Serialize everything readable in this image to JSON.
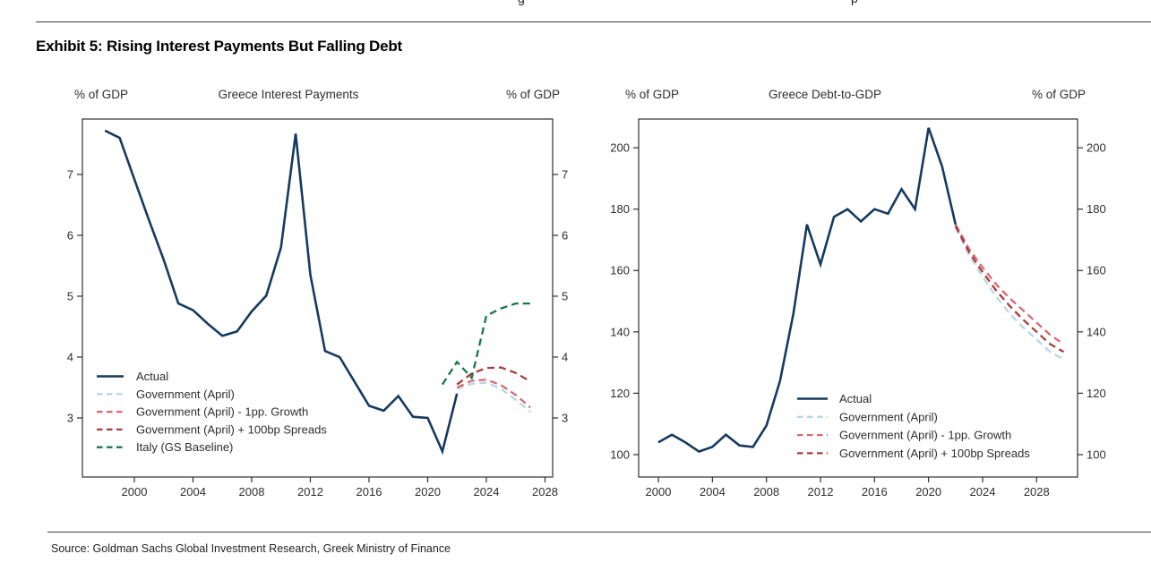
{
  "page": {
    "top_cropped_fragments": [
      "g",
      "p"
    ],
    "exhibit_title": "Exhibit 5: Rising Interest Payments But Falling Debt",
    "source": "Source: Goldman Sachs Global Investment Research, Greek Ministry of Finance"
  },
  "colors": {
    "axis": "#2f2f2f",
    "text": "#2e2e2e",
    "rule": "#3c3c3c",
    "actual": "#163a5f",
    "government_april": "#b9d5e7",
    "minus_1pp_growth": "#d9696f",
    "plus_100bp_spreads": "#a83b3e",
    "italy_baseline": "#17784a"
  },
  "chart_data": [
    {
      "type": "line",
      "title": "Greece Interest Payments",
      "left_axis_label": "% of GDP",
      "right_axis_label": "% of GDP",
      "xlim": [
        1996.46,
        2028.52
      ],
      "ylim": [
        2.03,
        7.91
      ],
      "x_ticks": [
        2000,
        2004,
        2008,
        2012,
        2016,
        2020,
        2024,
        2028
      ],
      "y_ticks": [
        3,
        4,
        5,
        6,
        7
      ],
      "grid": false,
      "legend_position": "bottom-left-inside",
      "series": [
        {
          "name": "Actual",
          "style": "solid",
          "color": "#163a5f",
          "points": [
            [
              1998,
              7.72
            ],
            [
              1999,
              7.6
            ],
            [
              2000,
              6.92
            ],
            [
              2001,
              6.25
            ],
            [
              2002,
              5.6
            ],
            [
              2003,
              4.88
            ],
            [
              2004,
              4.77
            ],
            [
              2005,
              4.55
            ],
            [
              2006,
              4.35
            ],
            [
              2007,
              4.42
            ],
            [
              2008,
              4.75
            ],
            [
              2009,
              5.01
            ],
            [
              2010,
              5.8
            ],
            [
              2011,
              7.67
            ],
            [
              2012,
              5.35
            ],
            [
              2013,
              4.1
            ],
            [
              2014,
              4.0
            ],
            [
              2015,
              3.6
            ],
            [
              2016,
              3.2
            ],
            [
              2017,
              3.12
            ],
            [
              2018,
              3.36
            ],
            [
              2019,
              3.02
            ],
            [
              2020,
              3.0
            ],
            [
              2021,
              2.45
            ],
            [
              2022,
              3.4
            ]
          ]
        },
        {
          "name": "Government (April)",
          "style": "dashed",
          "color": "#b9d5e7",
          "points": [
            [
              2022,
              3.48
            ],
            [
              2023,
              3.56
            ],
            [
              2024,
              3.58
            ],
            [
              2025,
              3.48
            ],
            [
              2026,
              3.3
            ],
            [
              2027,
              3.1
            ]
          ]
        },
        {
          "name": "Government (April) - 1pp. Growth",
          "style": "dashed",
          "color": "#d9696f",
          "points": [
            [
              2022,
              3.5
            ],
            [
              2023,
              3.61
            ],
            [
              2024,
              3.63
            ],
            [
              2025,
              3.54
            ],
            [
              2026,
              3.38
            ],
            [
              2027,
              3.17
            ]
          ]
        },
        {
          "name": "Government (April) + 100bp Spreads",
          "style": "dashed",
          "color": "#a83b3e",
          "points": [
            [
              2022,
              3.55
            ],
            [
              2023,
              3.73
            ],
            [
              2024,
              3.82
            ],
            [
              2025,
              3.83
            ],
            [
              2026,
              3.74
            ],
            [
              2027,
              3.6
            ]
          ]
        },
        {
          "name": "Italy (GS Baseline)",
          "style": "dashed",
          "color": "#17784a",
          "points": [
            [
              2021,
              3.55
            ],
            [
              2022,
              3.92
            ],
            [
              2023,
              3.66
            ],
            [
              2024,
              4.68
            ],
            [
              2025,
              4.8
            ],
            [
              2026,
              4.88
            ],
            [
              2027,
              4.88
            ]
          ]
        }
      ]
    },
    {
      "type": "line",
      "title": "Greece Debt-to-GDP",
      "left_axis_label": "% of GDP",
      "right_axis_label": "% of GDP",
      "xlim": [
        1998.54,
        2031.03
      ],
      "ylim": [
        92.7,
        209.36
      ],
      "x_ticks": [
        2000,
        2004,
        2008,
        2012,
        2016,
        2020,
        2024,
        2028
      ],
      "y_ticks": [
        100,
        120,
        140,
        160,
        180,
        200
      ],
      "grid": false,
      "legend_position": "bottom-right-inside",
      "series": [
        {
          "name": "Actual",
          "style": "solid",
          "color": "#163a5f",
          "points": [
            [
              2000,
              104
            ],
            [
              2001,
              106.5
            ],
            [
              2002,
              104
            ],
            [
              2003,
              101
            ],
            [
              2004,
              102.5
            ],
            [
              2005,
              106.5
            ],
            [
              2006,
              103
            ],
            [
              2007,
              102.5
            ],
            [
              2008,
              109.5
            ],
            [
              2009,
              124
            ],
            [
              2010,
              146
            ],
            [
              2011,
              175
            ],
            [
              2012,
              162
            ],
            [
              2013,
              177.5
            ],
            [
              2014,
              180
            ],
            [
              2015,
              176
            ],
            [
              2016,
              180
            ],
            [
              2017,
              178.5
            ],
            [
              2018,
              186.5
            ],
            [
              2019,
              180
            ],
            [
              2020,
              206.5
            ],
            [
              2021,
              194
            ],
            [
              2022,
              175
            ]
          ]
        },
        {
          "name": "Government (April)",
          "style": "dashed",
          "color": "#b9d5e7",
          "points": [
            [
              2022,
              174
            ],
            [
              2023,
              165
            ],
            [
              2024,
              158
            ],
            [
              2025,
              151.5
            ],
            [
              2026,
              146
            ],
            [
              2027,
              141.5
            ],
            [
              2028,
              137.5
            ],
            [
              2029,
              133.5
            ],
            [
              2030,
              131
            ]
          ]
        },
        {
          "name": "Government (April) - 1pp. Growth",
          "style": "dashed",
          "color": "#d9696f",
          "points": [
            [
              2022,
              175
            ],
            [
              2023,
              167
            ],
            [
              2024,
              161
            ],
            [
              2025,
              155.5
            ],
            [
              2026,
              151
            ],
            [
              2027,
              147
            ],
            [
              2028,
              143
            ],
            [
              2029,
              139
            ],
            [
              2030,
              136
            ]
          ]
        },
        {
          "name": "Government (April) + 100bp Spreads",
          "style": "dashed",
          "color": "#a83b3e",
          "points": [
            [
              2022,
              174.5
            ],
            [
              2023,
              166
            ],
            [
              2024,
              159.5
            ],
            [
              2025,
              153.5
            ],
            [
              2026,
              148.5
            ],
            [
              2027,
              144
            ],
            [
              2028,
              140
            ],
            [
              2029,
              136
            ],
            [
              2030,
              133.5
            ]
          ]
        }
      ]
    }
  ]
}
